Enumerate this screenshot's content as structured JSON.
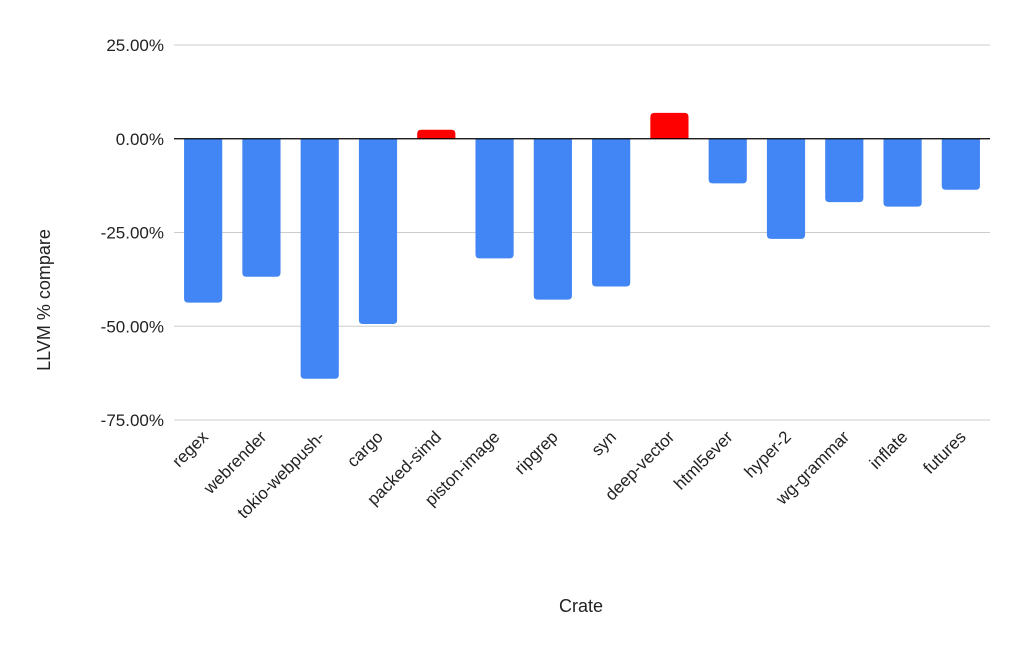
{
  "chart_data": {
    "type": "bar",
    "title": "",
    "xlabel": "Crate",
    "ylabel": "LLVM % compare",
    "categories": [
      "regex",
      "webrender",
      "tokio-webpush-",
      "cargo",
      "packed-simd",
      "piston-image",
      "ripgrep",
      "syn",
      "deep-vector",
      "html5ever",
      "hyper-2",
      "wg-grammar",
      "inflate",
      "futures"
    ],
    "values": [
      -43.7,
      -36.8,
      -64.0,
      -49.4,
      2.4,
      -31.9,
      -42.9,
      -39.4,
      6.9,
      -11.9,
      -26.7,
      -16.9,
      -18.1,
      -13.6
    ],
    "ylim": [
      -75,
      25
    ],
    "yticks": [
      25,
      0,
      -25,
      -50,
      -75
    ],
    "ytick_labels": [
      "25.00%",
      "0.00%",
      "-25.00%",
      "-50.00%",
      "-75.00%"
    ],
    "grid": true,
    "colors": {
      "negative": "#4285f4",
      "positive": "#ff0000",
      "zero_line": "#000000",
      "grid": "#cccccc"
    }
  }
}
